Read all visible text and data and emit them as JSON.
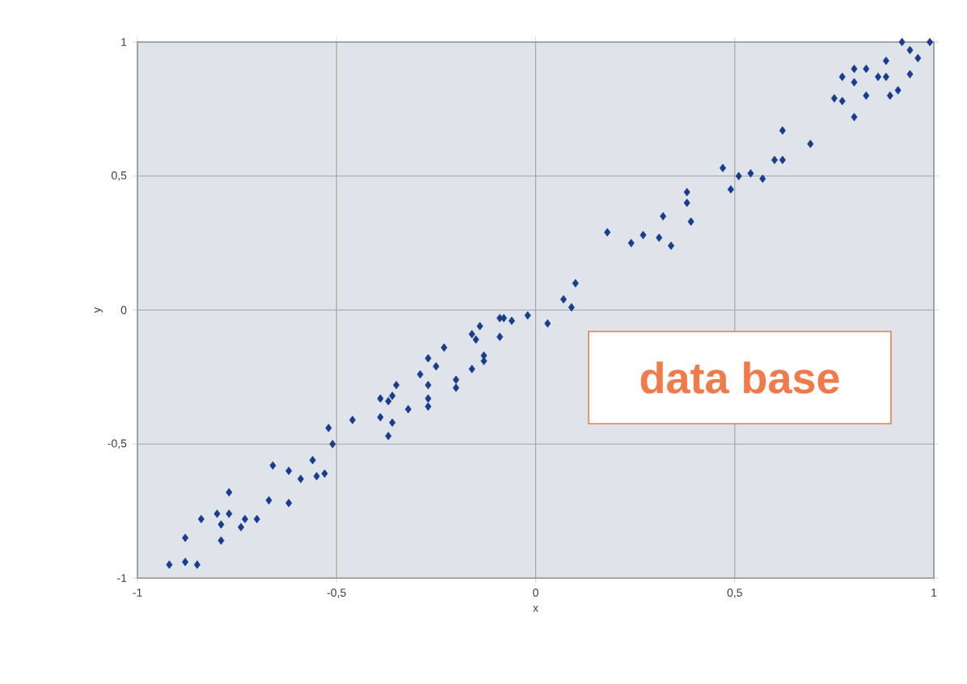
{
  "chart_data": {
    "type": "scatter",
    "xlabel": "x",
    "ylabel": "y",
    "x": [
      -0.92,
      -0.88,
      -0.85,
      -0.88,
      -0.79,
      -0.84,
      -0.8,
      -0.77,
      -0.79,
      -0.74,
      -0.73,
      -0.7,
      -0.77,
      -0.67,
      -0.62,
      -0.66,
      -0.62,
      -0.59,
      -0.56,
      -0.55,
      -0.53,
      -0.52,
      -0.51,
      -0.46,
      -0.39,
      -0.37,
      -0.36,
      -0.39,
      -0.37,
      -0.36,
      -0.35,
      -0.32,
      -0.29,
      -0.27,
      -0.27,
      -0.27,
      -0.27,
      -0.25,
      -0.23,
      -0.2,
      -0.2,
      -0.16,
      -0.16,
      -0.15,
      -0.14,
      -0.13,
      -0.13,
      -0.09,
      -0.08,
      -0.06,
      -0.09,
      -0.02,
      0.03,
      0.07,
      0.09,
      0.1,
      0.18,
      0.24,
      0.27,
      0.32,
      0.31,
      0.34,
      0.38,
      0.38,
      0.39,
      0.47,
      0.49,
      0.51,
      0.54,
      0.57,
      0.6,
      0.62,
      0.62,
      0.69,
      0.75,
      0.77,
      0.8,
      0.83,
      0.77,
      0.8,
      0.8,
      0.83,
      0.86,
      0.88,
      0.88,
      0.89,
      0.91,
      0.94,
      0.96,
      0.92,
      0.94,
      0.99
    ],
    "values": [
      -0.95,
      -0.94,
      -0.95,
      -0.85,
      -0.86,
      -0.78,
      -0.76,
      -0.76,
      -0.8,
      -0.81,
      -0.78,
      -0.78,
      -0.68,
      -0.71,
      -0.72,
      -0.58,
      -0.6,
      -0.63,
      -0.56,
      -0.62,
      -0.61,
      -0.44,
      -0.5,
      -0.41,
      -0.4,
      -0.47,
      -0.42,
      -0.33,
      -0.34,
      -0.32,
      -0.28,
      -0.37,
      -0.24,
      -0.28,
      -0.33,
      -0.36,
      -0.18,
      -0.21,
      -0.14,
      -0.26,
      -0.29,
      -0.22,
      -0.09,
      -0.11,
      -0.06,
      -0.17,
      -0.19,
      -0.03,
      -0.03,
      -0.04,
      -0.1,
      -0.02,
      -0.05,
      0.04,
      0.01,
      0.1,
      0.29,
      0.25,
      0.28,
      0.35,
      0.27,
      0.24,
      0.44,
      0.4,
      0.33,
      0.53,
      0.45,
      0.5,
      0.51,
      0.49,
      0.56,
      0.56,
      0.67,
      0.62,
      0.79,
      0.78,
      0.72,
      0.8,
      0.87,
      0.85,
      0.9,
      0.9,
      0.87,
      0.93,
      0.87,
      0.8,
      0.82,
      0.88,
      0.94,
      1.0,
      0.97,
      1.0
    ],
    "color": "#1a3c8c",
    "marker": "diamond",
    "grid": true,
    "xlim": [
      -1,
      1
    ],
    "ylim": [
      -1,
      1
    ],
    "xticks": [
      -1,
      {
        "value": -0.5,
        "label": "-0,5"
      },
      0,
      {
        "value": 0.5,
        "label": "0,5"
      },
      1
    ],
    "yticks": [
      -1,
      {
        "value": -0.5,
        "label": "-0,5"
      },
      0,
      {
        "value": 0.5,
        "label": "0,5"
      },
      1
    ],
    "annotations": [
      "data base"
    ]
  }
}
